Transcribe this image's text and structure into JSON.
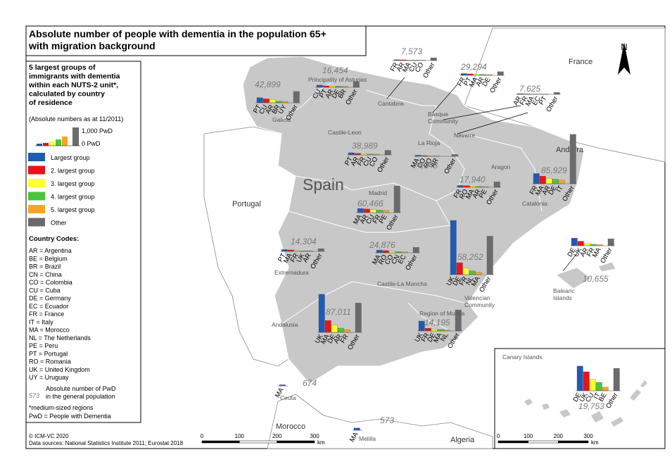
{
  "title": [
    "Absolute number of people with dementia in the population 65+",
    "with migration background"
  ],
  "legend": {
    "heading": [
      "5 largest groups of",
      "immigrants with dementia",
      "within each NUTS-2 unit*,",
      "calculated by country",
      "of residence"
    ],
    "note": "(Absolute numbers as at 11/2011)",
    "scale_top": "1,000 PwD",
    "scale_bottom": "0 PwD",
    "items": [
      {
        "label": "Largest group",
        "color": "#1f5bb4"
      },
      {
        "label": "2. largest group",
        "color": "#e8141c"
      },
      {
        "label": "3. largest group",
        "color": "#ffff33"
      },
      {
        "label": "4. largest group",
        "color": "#4cc43c"
      },
      {
        "label": "5. largest group",
        "color": "#f6a623"
      },
      {
        "label": "Other",
        "color": "#6b6b6b"
      }
    ],
    "codes_title": "Country Codes:",
    "codes": [
      "AR = Argentina",
      "BE = Belgium",
      "BR = Brazil",
      "CN = China",
      "CO = Colombia",
      "CU = Cuba",
      "DE = Germany",
      "EC = Ecuador",
      "FR = France",
      "IT = Italy",
      "MA = Morocco",
      "NL = The Netherlands",
      "PE = Peru",
      "PT = Portugal",
      "RO = Romania",
      "UK = United Kingdom",
      "UY = Uruguay"
    ],
    "total_example": "573",
    "total_desc": [
      "Absolute number of PwD",
      "in the general population"
    ],
    "footnotes": [
      "*medium-sized regions",
      "PwD = People with Dementia"
    ]
  },
  "regions": [
    {
      "name": [
        "Galicia"
      ],
      "total": "42,899",
      "codes": [
        "PT",
        "CU",
        "AR",
        "BR",
        "UY",
        "Other"
      ],
      "values": [
        280,
        220,
        180,
        90,
        80,
        620
      ]
    },
    {
      "name": [
        "Principality of Asturias"
      ],
      "total": "16,454",
      "codes": [
        "CU",
        "PT",
        "AR",
        "DE",
        "BR",
        "Other"
      ],
      "values": [
        120,
        80,
        70,
        60,
        50,
        320
      ]
    },
    {
      "name": [
        "Cantabria"
      ],
      "total": "7,573",
      "codes": [
        "FR",
        "AR",
        "MA",
        "CU",
        "CO",
        "Other"
      ],
      "values": [
        50,
        40,
        30,
        30,
        20,
        150
      ]
    },
    {
      "name": [
        "Basque",
        "Community"
      ],
      "total": "29,294",
      "codes": [
        "FR",
        "PT",
        "MA",
        "AR",
        "DE",
        "Other"
      ],
      "values": [
        100,
        80,
        60,
        50,
        40,
        200
      ]
    },
    {
      "name": [
        "Navarre"
      ],
      "total": "7,625",
      "codes": [
        "AR",
        "FR",
        "MA",
        "EC",
        "PT",
        "Other"
      ],
      "values": [
        40,
        30,
        30,
        20,
        20,
        100
      ]
    },
    {
      "name": [
        "La Rioja"
      ],
      "total": "4,048",
      "codes": [
        "MA",
        "CO",
        "RO",
        "AR",
        "Other"
      ],
      "values": [
        60,
        40,
        30,
        20,
        100
      ]
    },
    {
      "name": [
        "Castile-Leon"
      ],
      "total": "38,989",
      "codes": [
        "PT",
        "AR",
        "FR",
        "CU",
        "CO",
        "Other"
      ],
      "values": [
        120,
        90,
        70,
        50,
        40,
        250
      ]
    },
    {
      "name": [
        "Aragon"
      ],
      "total": "17,940",
      "codes": [
        "FR",
        "RO",
        "MA",
        "AR",
        "PE",
        "Other"
      ],
      "values": [
        100,
        90,
        70,
        50,
        40,
        300
      ]
    },
    {
      "name": [
        "Catalonia"
      ],
      "total": "85,929",
      "codes": [
        "FR",
        "MA",
        "AR",
        "DE",
        "IT",
        "Other"
      ],
      "values": [
        560,
        420,
        300,
        250,
        200,
        2700
      ]
    },
    {
      "name": [
        "Madrid"
      ],
      "total": "60,466",
      "codes": [
        "MA",
        "AR",
        "CU",
        "FR",
        "PE",
        "Other"
      ],
      "values": [
        230,
        200,
        160,
        140,
        120,
        1460
      ]
    },
    {
      "name": [
        "Extremadura"
      ],
      "total": "14,304",
      "codes": [
        "PT",
        "MA",
        "FR",
        "UK",
        "AR",
        "Other"
      ],
      "values": [
        100,
        80,
        40,
        30,
        30,
        150
      ]
    },
    {
      "name": [
        "Castile-La Mancha"
      ],
      "total": "24,876",
      "codes": [
        "MA",
        "RO",
        "CO",
        "CN",
        "EC",
        "Other"
      ],
      "values": [
        150,
        120,
        80,
        60,
        50,
        300
      ]
    },
    {
      "name": [
        "Valencian",
        "Community"
      ],
      "total": "58,252",
      "codes": [
        "UK",
        "DE",
        "FR",
        "NL",
        "MA",
        "Other"
      ],
      "values": [
        2960,
        650,
        350,
        200,
        130,
        2100
      ]
    },
    {
      "name": [
        "Balearic",
        "Islands"
      ],
      "total": "10,655",
      "codes": [
        "DE",
        "UK",
        "AR",
        "FR",
        "MA",
        "Other"
      ],
      "values": [
        420,
        250,
        120,
        80,
        60,
        380
      ]
    },
    {
      "name": [
        "Andalusia"
      ],
      "total": "87,011",
      "codes": [
        "UK",
        "MA",
        "DE",
        "AR",
        "FR",
        "Other"
      ],
      "values": [
        2080,
        650,
        400,
        230,
        150,
        1600
      ]
    },
    {
      "name": [
        "Region of Murcia"
      ],
      "total": "14,195",
      "codes": [
        "UK",
        "FR",
        "DE",
        "MA",
        "NL",
        "Other"
      ],
      "values": [
        540,
        150,
        100,
        80,
        60,
        1150
      ]
    },
    {
      "name": [
        "Canary Islands"
      ],
      "total": "19,753",
      "codes": [
        "DE",
        "UK",
        "CU",
        "IT",
        "BE",
        "Other"
      ],
      "values": [
        1350,
        1040,
        620,
        460,
        200,
        1230
      ]
    },
    {
      "name": [
        "Ceuta"
      ],
      "total": "674",
      "codes": [
        "MA"
      ],
      "values": [
        60
      ]
    },
    {
      "name": [
        "Melilla"
      ],
      "total": "573",
      "codes": [
        "MA"
      ],
      "values": [
        120
      ]
    }
  ],
  "countries": [
    "France",
    "Portugal",
    "Morocco",
    "Algeria",
    "Andorra"
  ],
  "main_label": "Spain",
  "north": "N",
  "scale_main": {
    "ticks": [
      0,
      100,
      200,
      300
    ],
    "unit": "km"
  },
  "scale_inset": {
    "ticks": [
      0,
      100,
      200,
      300
    ],
    "unit": "km"
  },
  "credits": [
    "© ICM-VC 2020",
    "Data sources: National Statistics Institute 2011; Eurostat 2018"
  ]
}
